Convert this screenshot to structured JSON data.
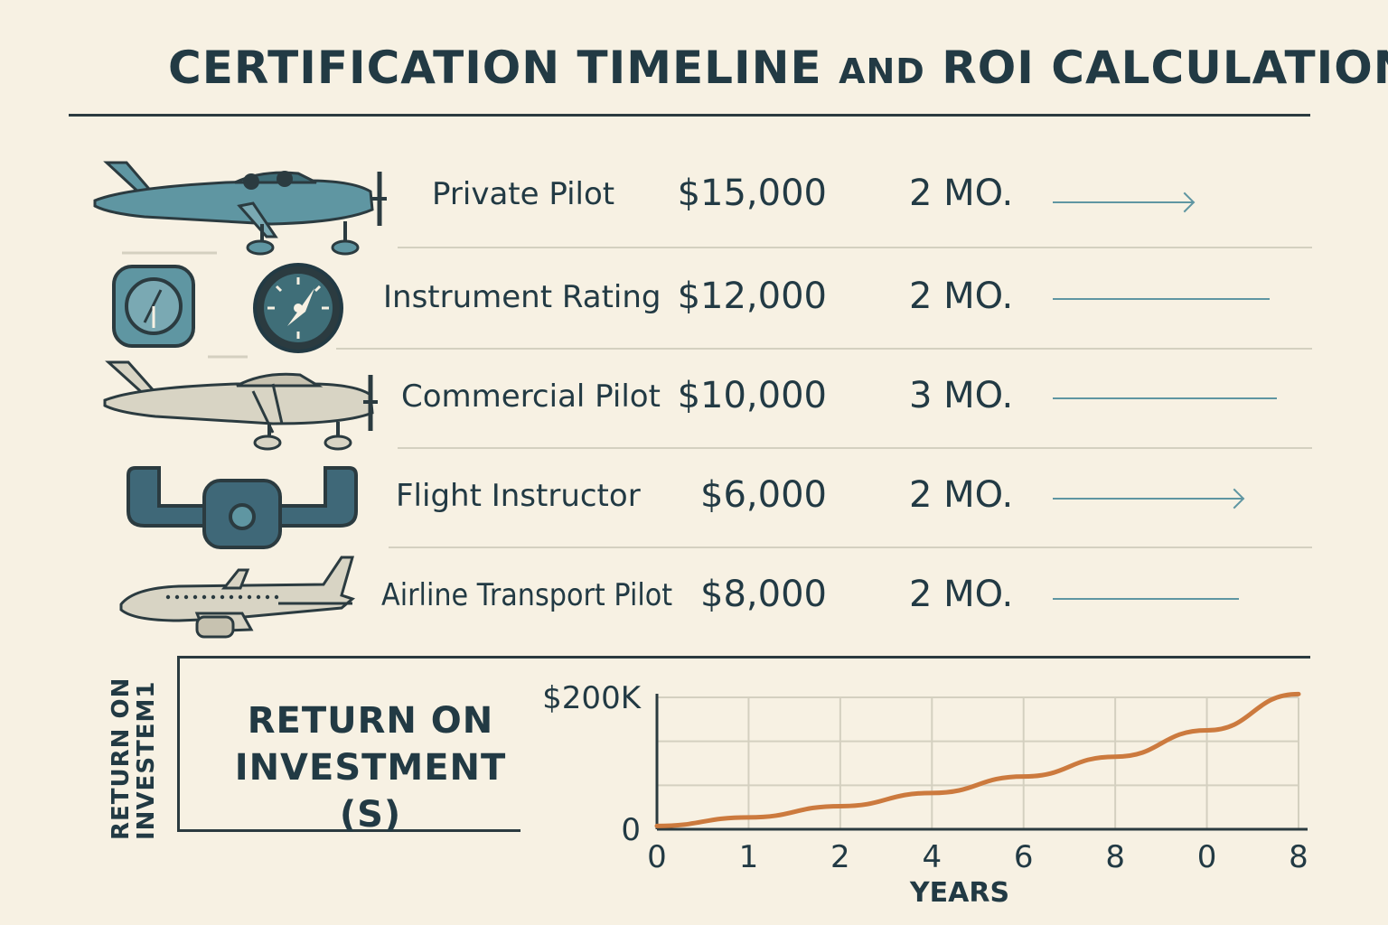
{
  "title": {
    "main": "CERTIFICATION TIMELINE",
    "connector": "AND",
    "tail": "ROI CALCULATION"
  },
  "certifications": [
    {
      "name": "Private Pilot",
      "cost": "$15,000",
      "duration": "2 MO.",
      "icon": "small-airplane-icon",
      "arrow": true
    },
    {
      "name": "Instrument Rating",
      "cost": "$12,000",
      "duration": "2 MO.",
      "icon": "flight-instruments-icon",
      "arrow": false
    },
    {
      "name": "Commercial Pilot",
      "cost": "$10,000",
      "duration": "3 MO.",
      "icon": "commercial-airplane-icon",
      "arrow": false
    },
    {
      "name": "Flight Instructor",
      "cost": "$6,000",
      "duration": "2 MO.",
      "icon": "control-yoke-icon",
      "arrow": true
    },
    {
      "name": "Airline Transport Pilot",
      "cost": "$8,000",
      "duration": "2 MO.",
      "icon": "jet-airliner-icon",
      "arrow": false
    }
  ],
  "roi": {
    "heading_line1": "RETURN ON",
    "heading_line2": "INVESTMENT (S)",
    "side_label_line1": "RETURN ON",
    "side_label_line2": "INVESTEM1"
  },
  "colors": {
    "background": "#f7f1e3",
    "ink": "#223a44",
    "accent": "#5f96a2",
    "curve": "#cc7a3e",
    "grid": "#d4d0c0"
  },
  "chart_data": {
    "type": "line",
    "title": "",
    "xlabel": "YEARS",
    "ylabel": "",
    "x_tick_labels": [
      "0",
      "1",
      "2",
      "4",
      "6",
      "8",
      "0",
      "8"
    ],
    "y_tick_labels": [
      "$200K",
      "0"
    ],
    "ylim": [
      0,
      200000
    ],
    "grid": true,
    "series": [
      {
        "values": [
          5000,
          18000,
          35000,
          55000,
          80000,
          110000,
          150000,
          205000
        ]
      }
    ]
  }
}
